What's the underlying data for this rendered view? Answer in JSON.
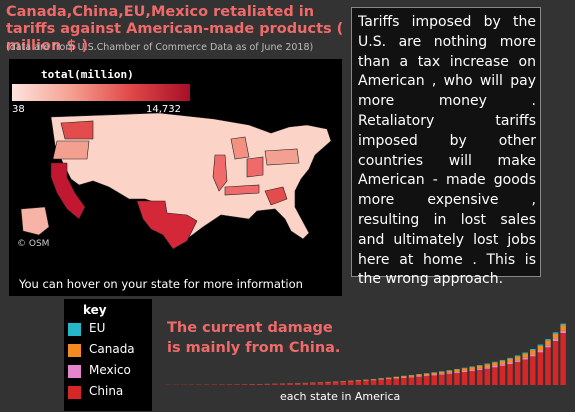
{
  "title": "Canada,China,EU,Mexico retaliated in tariffs against American-made products ( million $ )",
  "subtitle": "(data are from U.S.Chamber of Commerce Data as of June 2018)",
  "map": {
    "legend_title": "total(million)",
    "scale_min": "38",
    "scale_max": "14,732",
    "attribution": "© OSM",
    "hover_note": "You can hover on your state for more information"
  },
  "commentary": "Tariffs imposed by the U.S. are nothing more than a tax increase on American , who will pay more money . Retaliatory tariffs imposed by other countries will make American - made goods more expensive , resulting in lost sales and ultimately lost jobs here at home . This is the wrong approach.",
  "key": {
    "title": "key",
    "items": [
      {
        "label": "EU",
        "color": "#26b6c9"
      },
      {
        "label": "Canada",
        "color": "#f58a1f"
      },
      {
        "label": "Mexico",
        "color": "#e685cf"
      },
      {
        "label": "China",
        "color": "#d62728"
      }
    ]
  },
  "damage_note": "The current damage is mainly from China.",
  "chart_data": {
    "type": "bar",
    "stacked": true,
    "xlabel": "each state in America",
    "ylabel": "",
    "ylim": [
      0,
      14732
    ],
    "series_order": [
      "China",
      "Mexico",
      "Canada",
      "EU"
    ],
    "series": [
      {
        "name": "China",
        "values": [
          30,
          40,
          45,
          50,
          55,
          60,
          65,
          70,
          75,
          85,
          95,
          110,
          125,
          140,
          160,
          180,
          200,
          230,
          260,
          290,
          330,
          370,
          410,
          460,
          520,
          580,
          650,
          720,
          800,
          880,
          970,
          1060,
          1150,
          1250,
          1350,
          1460,
          1580,
          1700,
          1830,
          1970,
          2120,
          2290,
          2470,
          2680,
          2910,
          3180,
          3500,
          3880,
          4360,
          4960,
          5720,
          6680,
          7900
        ]
      },
      {
        "name": "Mexico",
        "values": [
          0,
          0,
          0,
          0,
          0,
          0,
          0,
          0,
          0,
          0,
          0,
          5,
          5,
          5,
          10,
          10,
          10,
          15,
          15,
          20,
          20,
          25,
          30,
          30,
          35,
          40,
          45,
          50,
          60,
          70,
          80,
          90,
          100,
          110,
          120,
          130,
          140,
          150,
          160,
          170,
          180,
          190,
          200,
          210,
          220,
          230,
          240,
          250,
          260,
          280,
          300,
          320,
          350
        ]
      },
      {
        "name": "Canada",
        "values": [
          5,
          5,
          5,
          5,
          5,
          5,
          5,
          10,
          10,
          10,
          10,
          15,
          15,
          20,
          20,
          25,
          30,
          35,
          40,
          45,
          50,
          60,
          70,
          80,
          90,
          100,
          110,
          120,
          140,
          160,
          180,
          200,
          220,
          240,
          260,
          280,
          300,
          330,
          360,
          390,
          420,
          450,
          480,
          510,
          540,
          570,
          600,
          640,
          680,
          720,
          760,
          800,
          850
        ]
      },
      {
        "name": "EU",
        "values": [
          0,
          0,
          0,
          0,
          0,
          0,
          0,
          0,
          0,
          0,
          5,
          5,
          5,
          5,
          5,
          10,
          10,
          10,
          10,
          15,
          15,
          15,
          20,
          20,
          25,
          25,
          30,
          30,
          35,
          40,
          45,
          50,
          55,
          60,
          65,
          70,
          75,
          80,
          85,
          90,
          95,
          100,
          110,
          120,
          130,
          140,
          150,
          160,
          170,
          180,
          190,
          200,
          220
        ]
      }
    ]
  }
}
